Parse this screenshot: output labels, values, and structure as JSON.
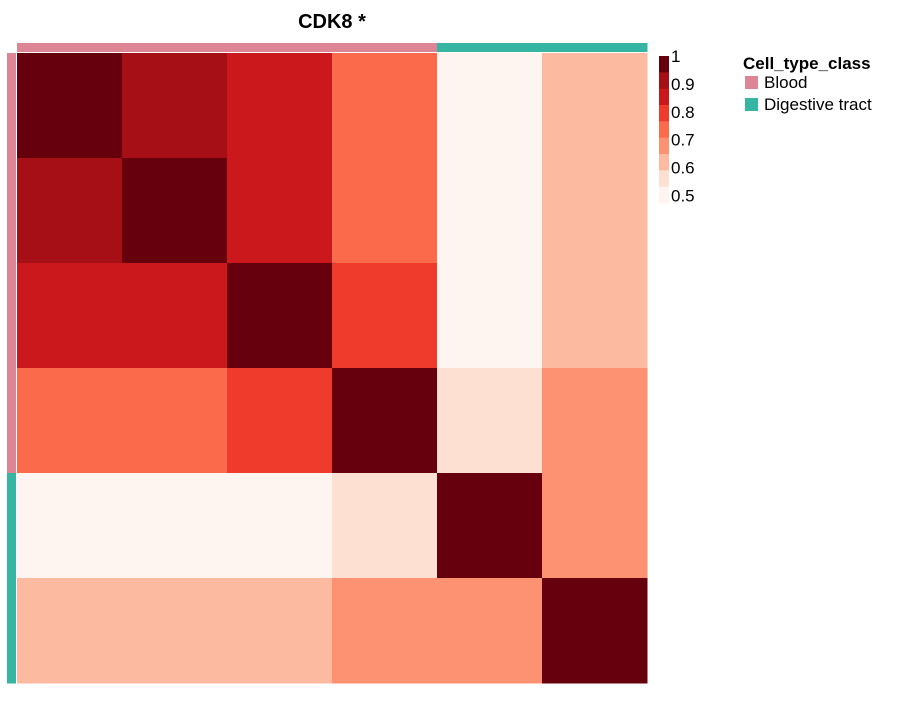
{
  "chart_data": {
    "type": "heatmap",
    "title": "CDK8 *",
    "matrix": [
      [
        1.0,
        0.95,
        0.88,
        0.75,
        0.5,
        0.62
      ],
      [
        0.95,
        1.0,
        0.88,
        0.75,
        0.5,
        0.62
      ],
      [
        0.88,
        0.88,
        1.0,
        0.82,
        0.5,
        0.62
      ],
      [
        0.75,
        0.75,
        0.82,
        1.0,
        0.58,
        0.68
      ],
      [
        0.5,
        0.5,
        0.5,
        0.58,
        1.0,
        0.68
      ],
      [
        0.62,
        0.62,
        0.62,
        0.68,
        0.68,
        1.0
      ]
    ],
    "row_groups": [
      "Blood",
      "Blood",
      "Blood",
      "Blood",
      "Digestive tract",
      "Digestive tract"
    ],
    "col_groups": [
      "Blood",
      "Blood",
      "Blood",
      "Blood",
      "Digestive tract",
      "Digestive tract"
    ],
    "color_scale": {
      "min": 0.5,
      "max": 1.0,
      "ticks": [
        "1",
        "0.9",
        "0.8",
        "0.7",
        "0.6",
        "0.5"
      ],
      "colors": [
        "#fff5f0",
        "#fee0d2",
        "#fcbba1",
        "#fc9272",
        "#fb6a4a",
        "#ef3b2c",
        "#cb181d",
        "#a50f15",
        "#67000d"
      ]
    },
    "legend": {
      "title": "Cell_type_class",
      "placement": "right",
      "entries": [
        {
          "label": "Blood",
          "color": "#de8595"
        },
        {
          "label": "Digestive tract",
          "color": "#35b5a2"
        }
      ]
    }
  }
}
